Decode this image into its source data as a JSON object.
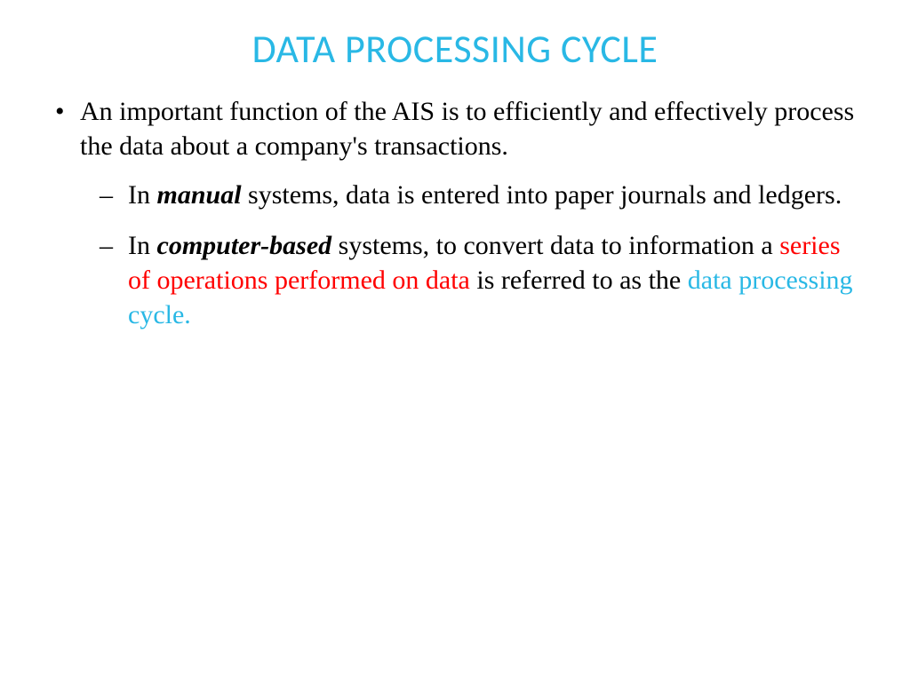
{
  "colors": {
    "title": "#29b8e5",
    "body": "#000000",
    "red_highlight": "#ff0000",
    "blue_highlight": "#29b8e5",
    "background": "#ffffff"
  },
  "typography": {
    "title_fontsize": 44,
    "body_fontsize": 30,
    "title_font": "Calibri",
    "body_font": "Times New Roman"
  },
  "title": "DATA PROCESSING CYCLE",
  "bullet1_text": "An important function of the AIS is to efficiently and effectively process the data about a company's transactions.",
  "sub1_prefix": "In ",
  "sub1_emphasis": "manual",
  "sub1_suffix": " systems, data is entered into paper journals and ledgers.",
  "sub2_prefix": "In ",
  "sub2_emphasis": "computer-based",
  "sub2_mid1": " systems, to convert data to information a  ",
  "sub2_red": "series of operations performed on data",
  "sub2_mid2": " is referred to as the ",
  "sub2_blue": "data processing cycle."
}
